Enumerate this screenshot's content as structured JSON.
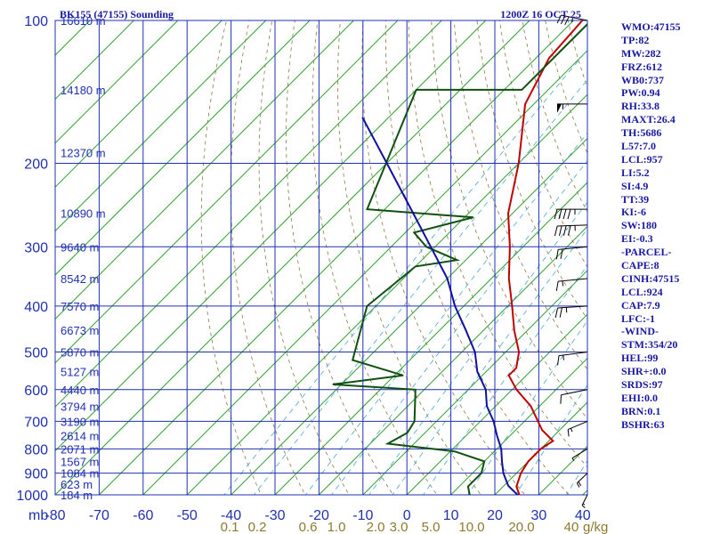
{
  "header": {
    "station": "BK155 (47155) Sounding",
    "time": "1200Z 16 OCT 25"
  },
  "params": [
    "WMO:47155",
    "TP:82",
    "MW:282",
    "FRZ:612",
    "WB0:737",
    "PW:0.94",
    "RH:33.8",
    "MAXT:26.4",
    "TH:5686",
    "L57:7.0",
    "LCL:957",
    "LI:5.2",
    "SI:4.9",
    "TT:39",
    "KI:-6",
    "SW:180",
    "EI:-0.3",
    "-PARCEL-",
    "CAPE:8",
    "CINH:47515",
    "LCL:924",
    "CAP:7.9",
    "LFC:-1",
    "-WIND-",
    "STM:354/20",
    "HEL:99",
    "SHR+:0.0",
    "SRDS:97",
    "EHI:0.0",
    "BRN:0.1",
    "BSHR:63"
  ],
  "chart_data": {
    "type": "skew-t",
    "pressure_ticks": [
      100,
      200,
      300,
      400,
      500,
      600,
      700,
      800,
      900,
      1000
    ],
    "pressure_labels": [
      "100",
      "200",
      "300",
      "400",
      "500",
      "600",
      "700",
      "800",
      "900",
      "1000"
    ],
    "temp_ticks": [
      -80,
      -70,
      -60,
      -50,
      -40,
      -30,
      -20,
      -10,
      0,
      10,
      20,
      30,
      40
    ],
    "temp_labels": [
      "-80",
      "-70",
      "-60",
      "-50",
      "-40",
      "-30",
      "-20",
      "-10",
      "0",
      "10",
      "20",
      "30",
      "40"
    ],
    "pressure_unit": "mb",
    "mixing_ratio_labels": [
      "0.1",
      "0.2",
      "0.6",
      "1.0",
      "2.0",
      "3.0",
      "5.0",
      "10.0",
      "20.0",
      "40",
      "g/kg"
    ],
    "heights": [
      {
        "p": 100,
        "label": "16610 m"
      },
      {
        "p": 140,
        "label": "14180 m"
      },
      {
        "p": 190,
        "label": "12370 m"
      },
      {
        "p": 255,
        "label": "10890 m"
      },
      {
        "p": 300,
        "label": "9640 m"
      },
      {
        "p": 350,
        "label": "8542 m"
      },
      {
        "p": 400,
        "label": "7570 m"
      },
      {
        "p": 450,
        "label": "6673 m"
      },
      {
        "p": 500,
        "label": "5870 m"
      },
      {
        "p": 550,
        "label": "5127 m"
      },
      {
        "p": 600,
        "label": "4440 m"
      },
      {
        "p": 650,
        "label": "3794 m"
      },
      {
        "p": 700,
        "label": "3190 m"
      },
      {
        "p": 750,
        "label": "2614 m"
      },
      {
        "p": 800,
        "label": "2071 m"
      },
      {
        "p": 850,
        "label": "1567 m"
      },
      {
        "p": 900,
        "label": "1084 m"
      },
      {
        "p": 950,
        "label": "623 m"
      },
      {
        "p": 1000,
        "label": "184 m"
      }
    ],
    "series": [
      {
        "color": "#c00000",
        "points": [
          [
            1013,
            26.4
          ],
          [
            960,
            23
          ],
          [
            900,
            21
          ],
          [
            850,
            20
          ],
          [
            800,
            20
          ],
          [
            770,
            21
          ],
          [
            730,
            16
          ],
          [
            650,
            8
          ],
          [
            600,
            1
          ],
          [
            560,
            -4
          ],
          [
            540,
            -4
          ],
          [
            500,
            -7
          ],
          [
            450,
            -13
          ],
          [
            400,
            -19
          ],
          [
            350,
            -26
          ],
          [
            300,
            -33
          ],
          [
            255,
            -41
          ],
          [
            200,
            -50
          ],
          [
            150,
            -62
          ],
          [
            120,
            -67
          ],
          [
            100,
            -68
          ]
        ]
      },
      {
        "color": "#105010",
        "points": [
          [
            1013,
            15
          ],
          [
            960,
            12
          ],
          [
            900,
            12
          ],
          [
            850,
            10
          ],
          [
            810,
            1
          ],
          [
            780,
            -16
          ],
          [
            740,
            -14
          ],
          [
            700,
            -15
          ],
          [
            600,
            -22
          ],
          [
            585,
            -42
          ],
          [
            560,
            -28
          ],
          [
            520,
            -43
          ],
          [
            400,
            -52
          ],
          [
            330,
            -50
          ],
          [
            320,
            -42
          ],
          [
            300,
            -52
          ],
          [
            280,
            -58
          ],
          [
            260,
            -48
          ],
          [
            250,
            -74
          ],
          [
            140,
            -90
          ],
          [
            140,
            -66
          ],
          [
            100,
            -66
          ]
        ]
      },
      {
        "color": "#1010a0",
        "points": [
          [
            1013,
            26.4
          ],
          [
            957,
            21
          ],
          [
            900,
            17
          ],
          [
            850,
            14
          ],
          [
            800,
            11
          ],
          [
            750,
            7
          ],
          [
            700,
            3
          ],
          [
            650,
            -2
          ],
          [
            600,
            -6
          ],
          [
            550,
            -12
          ],
          [
            500,
            -17
          ],
          [
            450,
            -24
          ],
          [
            400,
            -32
          ],
          [
            350,
            -40
          ],
          [
            300,
            -51
          ],
          [
            250,
            -64
          ],
          [
            200,
            -80
          ],
          [
            160,
            -96
          ]
        ]
      }
    ],
    "winds": [
      {
        "p": 100,
        "dir": 240,
        "spd": 35
      },
      {
        "p": 150,
        "dir": 270,
        "spd": 55
      },
      {
        "p": 250,
        "dir": 270,
        "spd": 45
      },
      {
        "p": 270,
        "dir": 275,
        "spd": 45
      },
      {
        "p": 300,
        "dir": 285,
        "spd": 20
      },
      {
        "p": 350,
        "dir": 285,
        "spd": 15
      },
      {
        "p": 400,
        "dir": 280,
        "spd": 25
      },
      {
        "p": 500,
        "dir": 290,
        "spd": 15
      },
      {
        "p": 600,
        "dir": 300,
        "spd": 10
      },
      {
        "p": 700,
        "dir": 320,
        "spd": 15
      },
      {
        "p": 800,
        "dir": 330,
        "spd": 5
      },
      {
        "p": 900,
        "dir": 340,
        "spd": 20
      },
      {
        "p": 1000,
        "dir": 350,
        "spd": 15
      }
    ]
  }
}
